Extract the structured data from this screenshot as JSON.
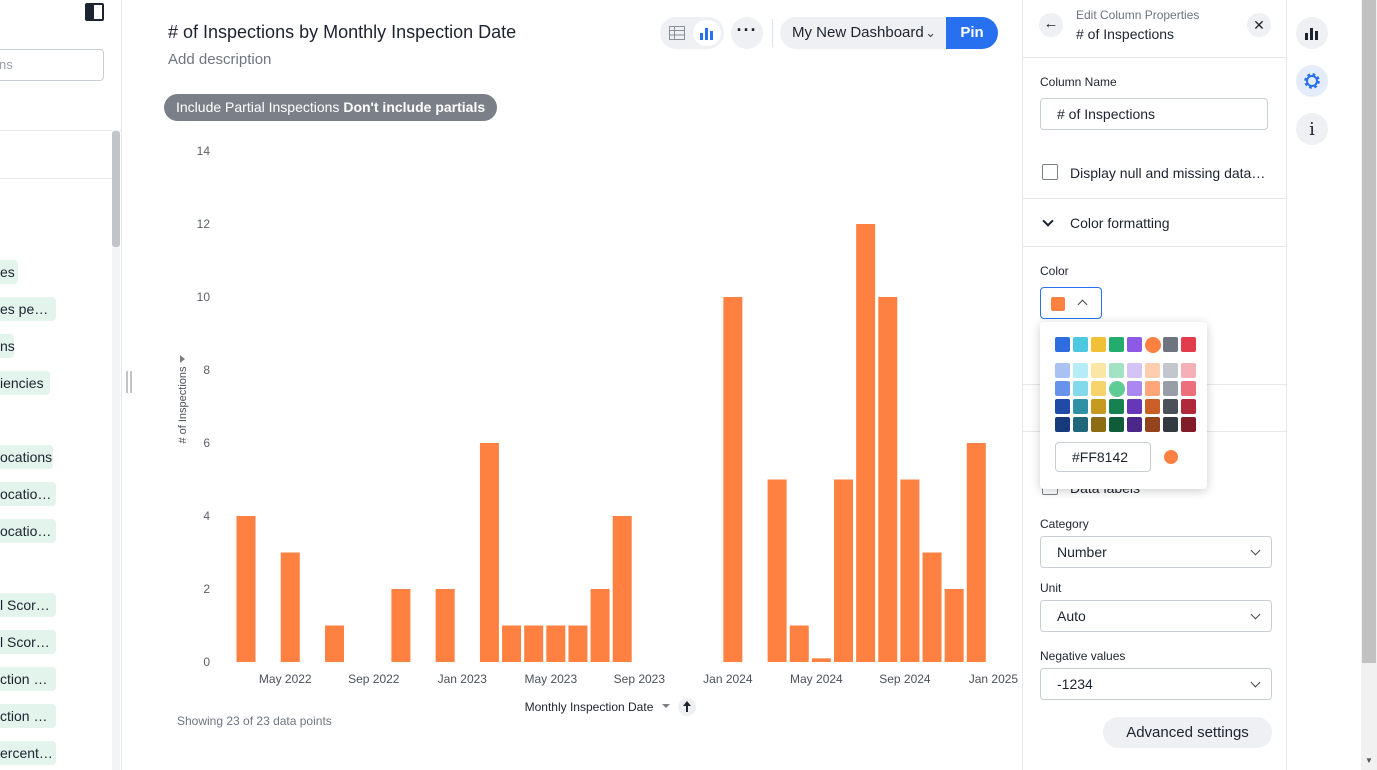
{
  "left_panel": {
    "search_placeholder": "ns",
    "columns": [
      "es",
      "es pe…",
      "ns",
      "iencies",
      "ocations",
      "ocatio…",
      "ocatio…",
      "l Scor…",
      "l Scor…",
      "ction …",
      "ction …",
      "ercent…"
    ]
  },
  "header": {
    "title": "# of Inspections by Monthly Inspection Date",
    "description_placeholder": "Add description",
    "more_label": "···",
    "dashboard_select": "My New Dashboard",
    "pin_label": "Pin"
  },
  "filter": {
    "name": "Include Partial Inspections",
    "value": "Don't include partials"
  },
  "footer": {
    "data_count": "Showing 23 of 23 data points"
  },
  "chart_data": {
    "type": "bar",
    "xlabel": "Monthly Inspection Date",
    "ylabel": "# of Inspections",
    "ylim": [
      0,
      14
    ],
    "yticks": [
      0,
      2,
      4,
      6,
      8,
      10,
      12,
      14
    ],
    "x_tick_labels": [
      "May 2022",
      "Sep 2022",
      "Jan 2023",
      "May 2023",
      "Sep 2023",
      "Jan 2024",
      "May 2024",
      "Sep 2024",
      "Jan 2025"
    ],
    "series": [
      {
        "color": "#ff8142",
        "points": [
          {
            "x": "2022-03",
            "y": 4
          },
          {
            "x": "2022-05",
            "y": 3
          },
          {
            "x": "2022-07",
            "y": 1
          },
          {
            "x": "2022-10",
            "y": 2
          },
          {
            "x": "2022-12",
            "y": 2
          },
          {
            "x": "2023-02",
            "y": 6
          },
          {
            "x": "2023-03",
            "y": 1
          },
          {
            "x": "2023-04",
            "y": 1
          },
          {
            "x": "2023-05",
            "y": 1
          },
          {
            "x": "2023-06",
            "y": 1
          },
          {
            "x": "2023-07",
            "y": 2
          },
          {
            "x": "2023-08",
            "y": 4
          },
          {
            "x": "2024-01",
            "y": 10
          },
          {
            "x": "2024-03",
            "y": 5
          },
          {
            "x": "2024-04",
            "y": 1
          },
          {
            "x": "2024-05",
            "y": 0.1
          },
          {
            "x": "2024-06",
            "y": 5
          },
          {
            "x": "2024-07",
            "y": 12
          },
          {
            "x": "2024-08",
            "y": 10
          },
          {
            "x": "2024-09",
            "y": 5
          },
          {
            "x": "2024-10",
            "y": 3
          },
          {
            "x": "2024-11",
            "y": 2
          },
          {
            "x": "2024-12",
            "y": 6
          }
        ]
      }
    ]
  },
  "properties": {
    "subtitle": "Edit Column Properties",
    "title": "# of Inspections",
    "column_name_label": "Column Name",
    "column_name_value": "# of Inspections",
    "display_null_label": "Display null and missing data…",
    "color_formatting_label": "Color formatting",
    "color_label": "Color",
    "data_labels_label": "Data labels",
    "category_label": "Category",
    "category_value": "Number",
    "unit_label": "Unit",
    "unit_value": "Auto",
    "negative_label": "Negative values",
    "negative_value": "-1234",
    "advanced_label": "Advanced settings"
  },
  "color_picker": {
    "hex_value": "#FF8142",
    "selected_color": "#ff8142",
    "palette_rows": [
      [
        "#2e6de0",
        "#4cc8e0",
        "#f2c037",
        "#22ac6d",
        "#8d5ae8",
        "#ff8142",
        "#6e7580",
        "#e23b4c"
      ],
      [
        "#a9c2f2",
        "#b6ecf5",
        "#fbe7a5",
        "#a3e3c4",
        "#d5c2f7",
        "#ffcdb0",
        "#c3c7cd",
        "#f5b0b7"
      ],
      [
        "#6893ea",
        "#81d9ea",
        "#f7d36b",
        "#5fcb95",
        "#ab87f0",
        "#ffa57a",
        "#989ea7",
        "#ec6f7c"
      ],
      [
        "#1f4aa8",
        "#2f8fa4",
        "#c59a1e",
        "#168151",
        "#6637b8",
        "#c95e27",
        "#4b515a",
        "#b1283a"
      ],
      [
        "#163a7c",
        "#206779",
        "#8c6d14",
        "#0f5c3a",
        "#4a2788",
        "#93441c",
        "#343940",
        "#821c29"
      ]
    ],
    "highlight_swatch": "#5fcb95"
  },
  "rail": {
    "icons": [
      "bar-chart-icon",
      "settings-icon",
      "info-icon"
    ]
  }
}
